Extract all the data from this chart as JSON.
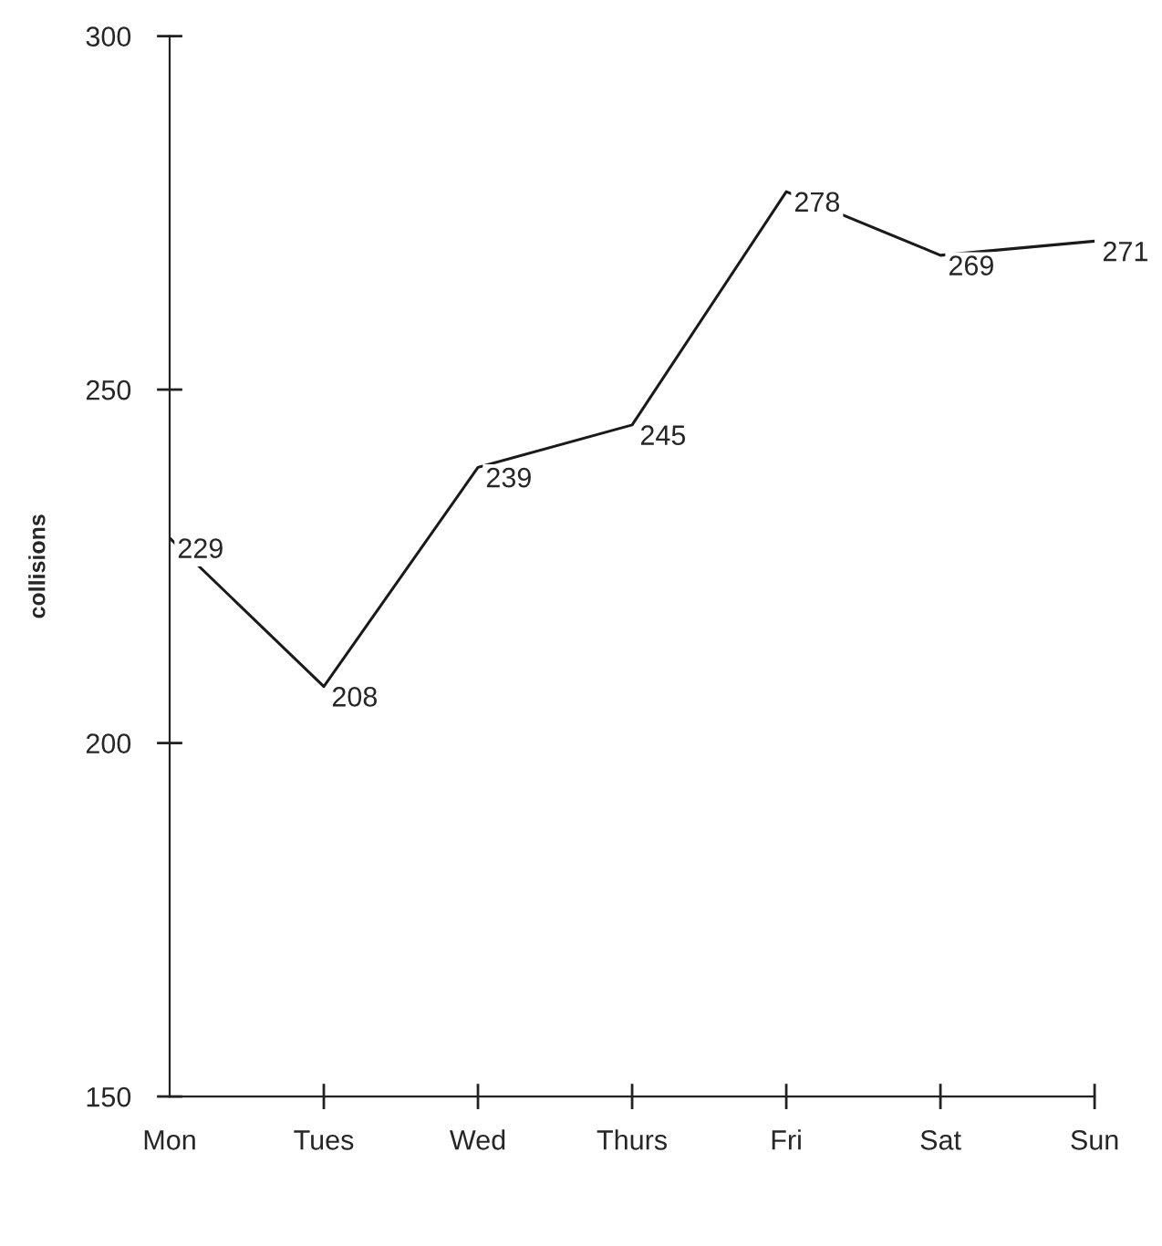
{
  "chart_data": {
    "type": "line",
    "ylabel": "collisions",
    "categories": [
      "Mon",
      "Tues",
      "Wed",
      "Thurs",
      "Fri",
      "Sat",
      "Sun"
    ],
    "series": [
      {
        "color": "#1a1a1a",
        "values": [
          229,
          208,
          239,
          245,
          278,
          269,
          271
        ]
      }
    ],
    "ylim": [
      150,
      300
    ],
    "yticks": [
      150,
      200,
      250,
      300
    ],
    "data_labels": true,
    "grid": false,
    "legend": false,
    "marker": "none",
    "line_style": "solid"
  }
}
